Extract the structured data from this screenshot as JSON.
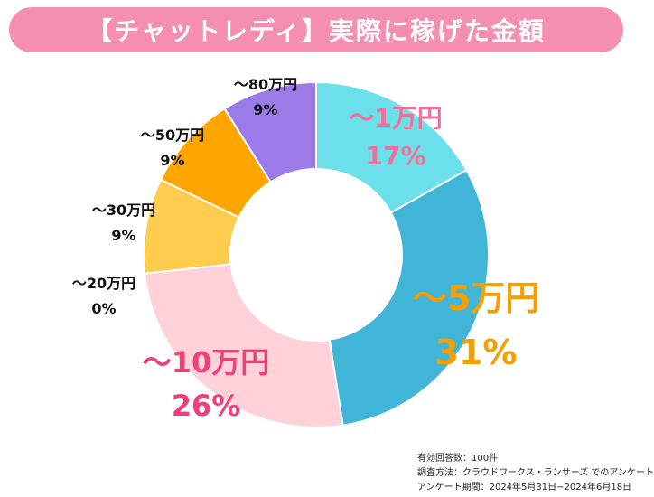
{
  "title": "【チャットレディ】実際に稼げた金額",
  "chart_data": {
    "type": "pie",
    "variant": "donut",
    "categories": [
      "～1万円",
      "～5万円",
      "～10万円",
      "～20万円",
      "～30万円",
      "～50万円",
      "～80万円"
    ],
    "values": [
      17,
      31,
      26,
      0,
      9,
      9,
      9
    ],
    "percent_labels": [
      "17%",
      "31%",
      "26%",
      "0%",
      "9%",
      "9%",
      "9%"
    ],
    "colors": [
      "#6ce0ea",
      "#40b5d8",
      "#ffd1d8",
      "#ffd1d8",
      "#ffcc4d",
      "#ffa500",
      "#9b7be8"
    ],
    "label_colors": [
      "#f0709a",
      "#f5a000",
      "#f0407a",
      "#111111",
      "#111111",
      "#111111",
      "#111111"
    ],
    "legend": "none"
  },
  "footnote": {
    "line1": "有効回答数：100件",
    "line2": "調査方法：クラウドワークス・ランサーズ でのアンケート",
    "line3": "アンケート期間：2024年5月31日−2024年6月18日"
  }
}
